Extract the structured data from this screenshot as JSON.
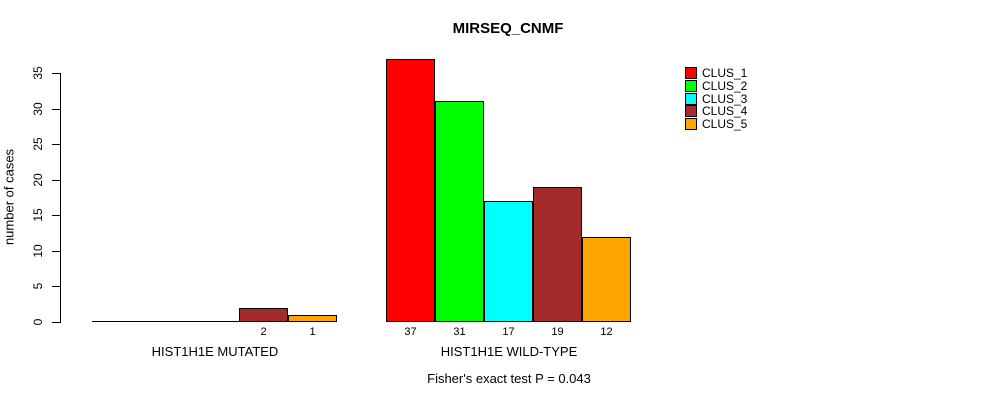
{
  "chart_data": {
    "type": "bar",
    "title": "MIRSEQ_CNMF",
    "ylabel": "number of cases",
    "ylim": [
      0,
      35
    ],
    "yticks": [
      0,
      5,
      10,
      15,
      20,
      25,
      30,
      35
    ],
    "grid": false,
    "legend_position": "top-right",
    "categories": [
      "HIST1H1E MUTATED",
      "HIST1H1E WILD-TYPE"
    ],
    "series": [
      {
        "name": "CLUS_1",
        "color": "#ff0000",
        "values": [
          0,
          37
        ]
      },
      {
        "name": "CLUS_2",
        "color": "#00ff00",
        "values": [
          0,
          31
        ]
      },
      {
        "name": "CLUS_3",
        "color": "#00ffff",
        "values": [
          0,
          17
        ]
      },
      {
        "name": "CLUS_4",
        "color": "#a52a2a",
        "values": [
          2,
          19
        ]
      },
      {
        "name": "CLUS_5",
        "color": "#ffa500",
        "values": [
          1,
          12
        ]
      }
    ],
    "bar_value_labels": "shown below each non-zero bar",
    "annotation": "Fisher's exact test P = 0.043"
  }
}
